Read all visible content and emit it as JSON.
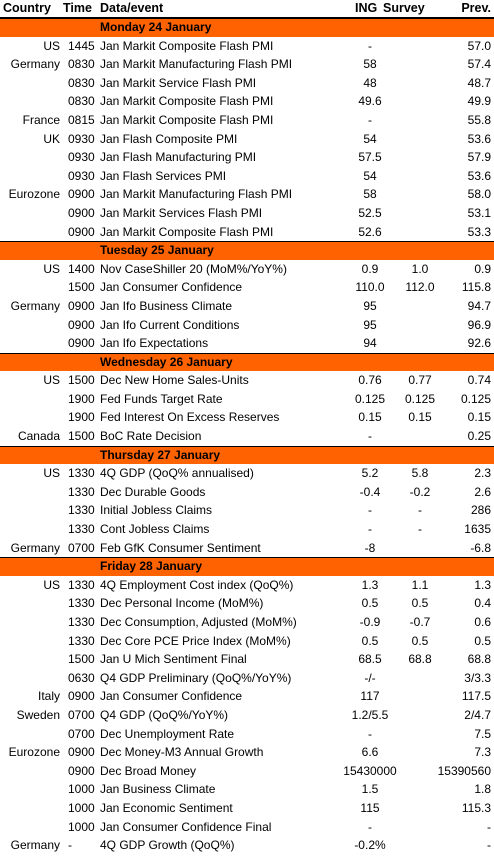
{
  "header": [
    "Country",
    "Time",
    "Data/event",
    "ING",
    "Survey",
    "Prev."
  ],
  "sections": [
    {
      "title": "Monday 24 January",
      "rows": [
        [
          "US",
          "1445",
          "Jan Markit Composite Flash PMI",
          "-",
          null,
          "57.0"
        ],
        [
          "Germany",
          "0830",
          "Jan Markit Manufacturing Flash PMI",
          "58",
          null,
          "57.4"
        ],
        [
          null,
          "0830",
          "Jan Markit Service Flash PMI",
          "48",
          null,
          "48.7"
        ],
        [
          null,
          "0830",
          "Jan Markit Composite Flash PMI",
          "49.6",
          null,
          "49.9"
        ],
        [
          "France",
          "0815",
          "Jan Markit Composite Flash PMI",
          "-",
          null,
          "55.8"
        ],
        [
          "UK",
          "0930",
          "Jan Flash Composite PMI",
          "54",
          null,
          "53.6"
        ],
        [
          null,
          "0930",
          "Jan Flash Manufacturing PMI",
          "57.5",
          null,
          "57.9"
        ],
        [
          null,
          "0930",
          "Jan Flash Services PMI",
          "54",
          null,
          "53.6"
        ],
        [
          "Eurozone",
          "0900",
          "Jan Markit Manufacturing Flash PMI",
          "58",
          null,
          "58.0"
        ],
        [
          null,
          "0900",
          "Jan Markit Services Flash PMI",
          "52.5",
          null,
          "53.1"
        ],
        [
          null,
          "0900",
          "Jan Markit Composite Flash PMI",
          "52.6",
          null,
          "53.3"
        ]
      ]
    },
    {
      "title": "Tuesday 25 January",
      "rows": [
        [
          "US",
          "1400",
          "Nov CaseShiller 20 (MoM%/YoY%)",
          "0.9",
          "1.0",
          "0.9"
        ],
        [
          null,
          "1500",
          "Jan Consumer Confidence",
          "110.0",
          "112.0",
          "115.8"
        ],
        [
          "Germany",
          "0900",
          "Jan Ifo Business Climate",
          "95",
          null,
          "94.7"
        ],
        [
          null,
          "0900",
          "Jan Ifo Current Conditions",
          "95",
          null,
          "96.9"
        ],
        [
          null,
          "0900",
          "Jan Ifo Expectations",
          "94",
          null,
          "92.6"
        ]
      ]
    },
    {
      "title": "Wednesday 26 January",
      "rows": [
        [
          "US",
          "1500",
          "Dec New Home Sales-Units",
          "0.76",
          "0.77",
          "0.74"
        ],
        [
          null,
          "1900",
          "Fed Funds Target Rate",
          "0.125",
          "0.125",
          "0.125"
        ],
        [
          null,
          "1900",
          "Fed Interest On Excess Reserves",
          "0.15",
          "0.15",
          "0.15"
        ],
        [
          "Canada",
          "1500",
          "BoC Rate Decision",
          "-",
          null,
          "0.25"
        ]
      ]
    },
    {
      "title": "Thursday 27 January",
      "rows": [
        [
          "US",
          "1330",
          "4Q GDP (QoQ% annualised)",
          "5.2",
          "5.8",
          "2.3"
        ],
        [
          null,
          "1330",
          "Dec Durable Goods",
          "-0.4",
          "-0.2",
          "2.6"
        ],
        [
          null,
          "1330",
          "Initial Jobless Claims",
          "-",
          "-",
          "286"
        ],
        [
          null,
          "1330",
          "Cont Jobless Claims",
          "-",
          "-",
          "1635"
        ],
        [
          "Germany",
          "0700",
          "Feb GfK Consumer Sentiment",
          "-8",
          null,
          "-6.8"
        ]
      ]
    },
    {
      "title": "Friday 28 January",
      "rows": [
        [
          "US",
          "1330",
          "4Q Employment Cost index (QoQ%)",
          "1.3",
          "1.1",
          "1.3"
        ],
        [
          null,
          "1330",
          "Dec Personal Income (MoM%)",
          "0.5",
          "0.5",
          "0.4"
        ],
        [
          null,
          "1330",
          "Dec Consumption, Adjusted (MoM%)",
          "-0.9",
          "-0.7",
          "0.6"
        ],
        [
          null,
          "1330",
          "Dec Core PCE Price Index (MoM%)",
          "0.5",
          "0.5",
          "0.5"
        ],
        [
          null,
          "1500",
          "Jan U Mich Sentiment Final",
          "68.5",
          "68.8",
          "68.8"
        ],
        [
          null,
          "0630",
          "Q4 GDP Preliminary (QoQ%/YoY%)",
          "-/-",
          null,
          "3/3.3"
        ],
        [
          "Italy",
          "0900",
          "Jan Consumer Confidence",
          "117",
          null,
          "117.5"
        ],
        [
          "Sweden",
          "0700",
          "Q4 GDP (QoQ%/YoY%)",
          "1.2/5.5",
          null,
          "2/4.7"
        ],
        [
          null,
          "0700",
          "Dec Unemployment Rate",
          "-",
          null,
          "7.5"
        ],
        [
          "Eurozone",
          "0900",
          "Dec Money-M3 Annual Growth",
          "6.6",
          null,
          "7.3"
        ],
        [
          null,
          "0900",
          "Dec Broad Money",
          "15430000",
          null,
          "15390560"
        ],
        [
          null,
          "1000",
          "Jan Business Climate",
          "1.5",
          null,
          "1.8"
        ],
        [
          null,
          "1000",
          "Jan Economic Sentiment",
          "115",
          null,
          "115.3"
        ],
        [
          null,
          "1000",
          "Jan Consumer Confidence Final",
          "-",
          null,
          "-"
        ],
        [
          "Germany",
          "-",
          "4Q GDP Growth (QoQ%)",
          "-0.2%",
          null,
          "-"
        ]
      ]
    }
  ]
}
